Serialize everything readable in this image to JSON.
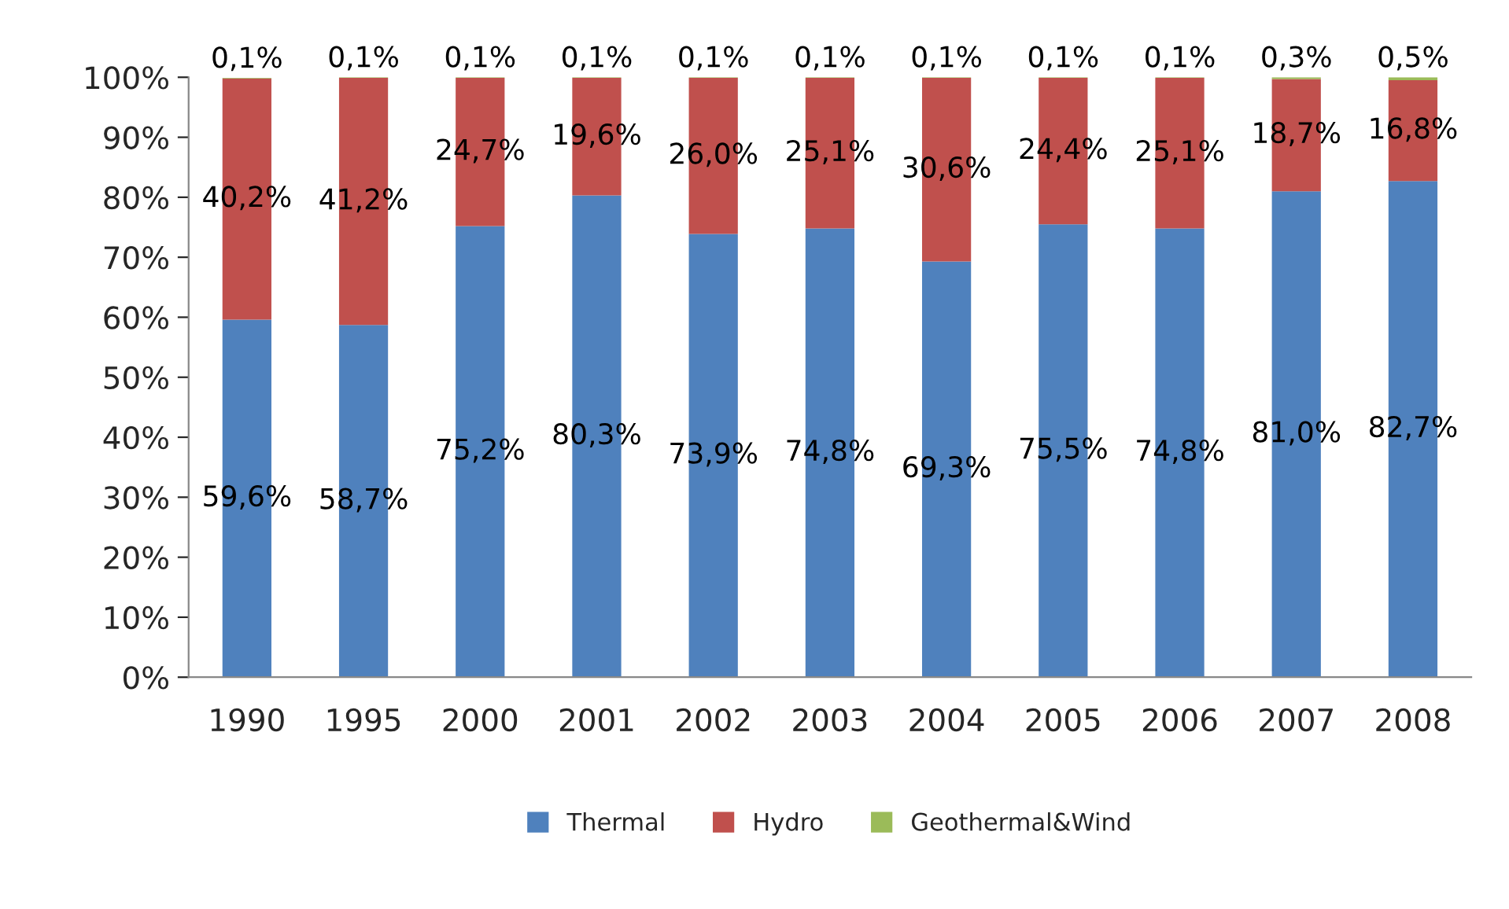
{
  "chart_data": {
    "type": "bar",
    "stacked": true,
    "categories": [
      "1990",
      "1995",
      "2000",
      "2001",
      "2002",
      "2003",
      "2004",
      "2005",
      "2006",
      "2007",
      "2008"
    ],
    "series": [
      {
        "name": "Thermal",
        "color": "#4f81bd",
        "values": [
          59.6,
          58.7,
          75.2,
          80.3,
          73.9,
          74.8,
          69.3,
          75.5,
          74.8,
          81.0,
          82.7
        ],
        "value_labels": [
          "59,6%",
          "58,7%",
          "75,2%",
          "80,3%",
          "73,9%",
          "74,8%",
          "69,3%",
          "75,5%",
          "74,8%",
          "81,0%",
          "82,7%"
        ]
      },
      {
        "name": "Hydro",
        "color": "#c0504d",
        "values": [
          40.2,
          41.2,
          24.7,
          19.6,
          26.0,
          25.1,
          30.6,
          24.4,
          25.1,
          18.7,
          16.8
        ],
        "value_labels": [
          "40,2%",
          "41,2%",
          "24,7%",
          "19,6%",
          "26,0%",
          "25,1%",
          "30,6%",
          "24,4%",
          "25,1%",
          "18,7%",
          "16,8%"
        ]
      },
      {
        "name": "Geothermal&Wind",
        "color": "#9bbb59",
        "values": [
          0.1,
          0.1,
          0.1,
          0.1,
          0.1,
          0.1,
          0.1,
          0.1,
          0.1,
          0.3,
          0.5
        ],
        "value_labels": [
          "0,1%",
          "0,1%",
          "0,1%",
          "0,1%",
          "0,1%",
          "0,1%",
          "0,1%",
          "0,1%",
          "0,1%",
          "0,3%",
          "0,5%"
        ]
      }
    ],
    "ylim": [
      0,
      100
    ],
    "yticks": [
      {
        "value": 0,
        "label": "0%"
      },
      {
        "value": 10,
        "label": "10%"
      },
      {
        "value": 20,
        "label": "20%"
      },
      {
        "value": 30,
        "label": "30%"
      },
      {
        "value": 40,
        "label": "40%"
      },
      {
        "value": 50,
        "label": "50%"
      },
      {
        "value": 60,
        "label": "60%"
      },
      {
        "value": 70,
        "label": "70%"
      },
      {
        "value": 80,
        "label": "80%"
      },
      {
        "value": 90,
        "label": "90%"
      },
      {
        "value": 100,
        "label": "100%"
      }
    ],
    "grid": false,
    "legend": "bottom"
  }
}
